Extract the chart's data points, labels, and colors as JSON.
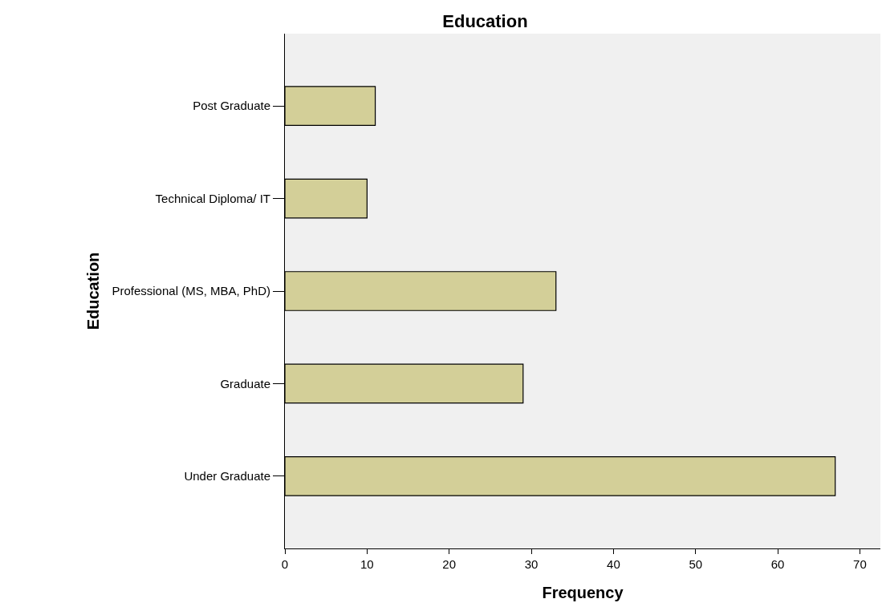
{
  "chart_data": {
    "type": "bar",
    "orientation": "horizontal",
    "title": "Education",
    "xlabel": "Frequency",
    "ylabel": "Education",
    "categories": [
      "Post Graduate",
      "Technical Diploma/ IT",
      "Professional (MS, MBA, PhD)",
      "Graduate",
      "Under Graduate"
    ],
    "values": [
      11,
      10,
      33,
      29,
      67
    ],
    "color": "#d3cf98",
    "xlim": [
      0,
      72.5
    ],
    "xticks": [
      0,
      10,
      20,
      30,
      40,
      50,
      60,
      70
    ]
  }
}
